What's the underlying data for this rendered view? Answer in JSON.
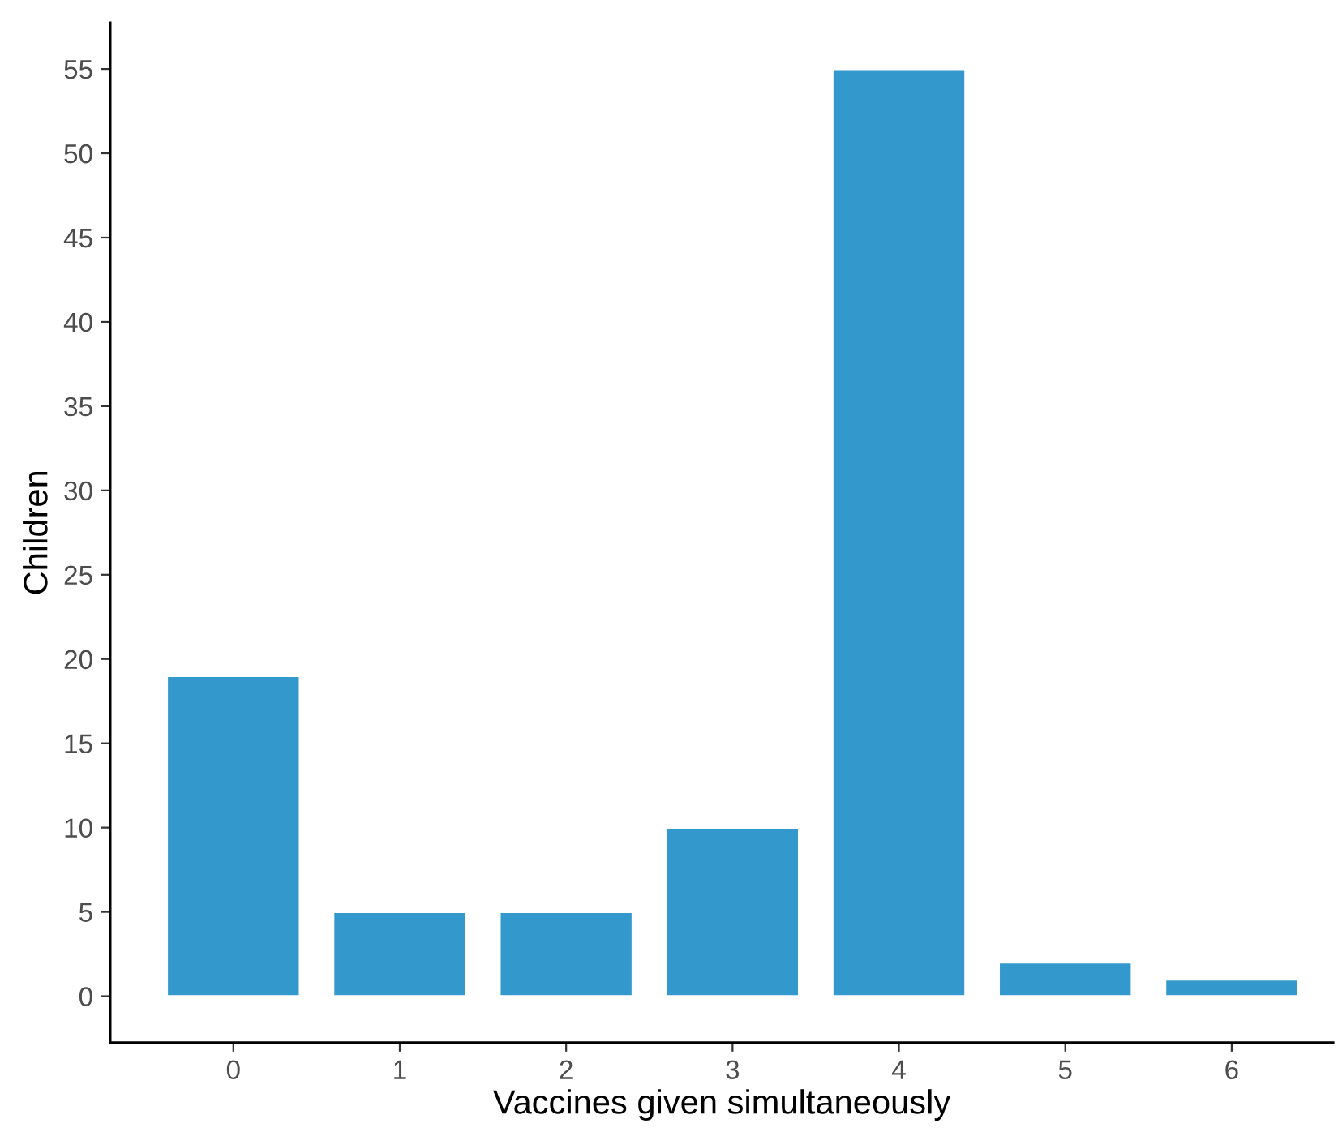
{
  "chart_data": {
    "type": "bar",
    "xlabel": "Vaccines given simultaneously",
    "ylabel": "Children",
    "categories": [
      "0",
      "1",
      "2",
      "3",
      "4",
      "5",
      "6"
    ],
    "values": [
      19,
      5,
      5,
      10,
      55,
      2,
      1
    ],
    "color": "#3399cc",
    "ylim": [
      -2.75,
      57.75
    ],
    "yticks": [
      0,
      5,
      10,
      15,
      20,
      25,
      30,
      35,
      40,
      45,
      50,
      55
    ],
    "grid": false,
    "legend": false
  }
}
